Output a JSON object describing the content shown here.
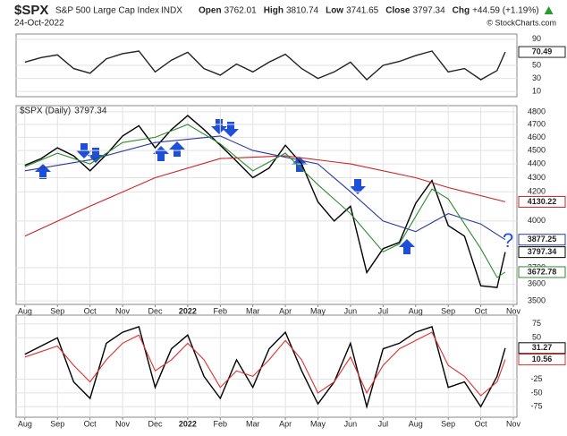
{
  "header": {
    "symbol": "$SPX",
    "name": "S&P 500 Large Cap Index",
    "exchange": "INDX",
    "date": "24-Oct-2022",
    "ohlc": [
      {
        "label": "Open",
        "value": "3762.01"
      },
      {
        "label": "High",
        "value": "3810.74"
      },
      {
        "label": "Low",
        "value": "3741.65"
      },
      {
        "label": "Close",
        "value": "3797.34"
      },
      {
        "label": "Chg",
        "value": "+44.59 (+1.19%)"
      }
    ],
    "credit": "© StockCharts.com",
    "annotation": "?"
  },
  "chart_data": [
    {
      "type": "line",
      "xlim": [
        -0.27,
        15.11
      ],
      "ylim": [
        2,
        98
      ],
      "yticks": [
        90,
        50,
        30,
        10
      ],
      "grid": true,
      "series": [
        {
          "color": "#222222",
          "x": [
            0,
            0.5,
            1,
            1.5,
            2,
            2.5,
            3,
            3.5,
            4,
            4.5,
            5,
            5.5,
            6,
            6.5,
            7,
            7.5,
            8,
            8.5,
            9,
            9.5,
            10,
            10.5,
            11,
            11.5,
            12,
            12.5,
            13,
            13.5,
            14,
            14.5,
            14.75
          ],
          "values": [
            55,
            62,
            66,
            45,
            38,
            60,
            68,
            72,
            40,
            58,
            70,
            45,
            35,
            52,
            40,
            55,
            67,
            45,
            30,
            40,
            55,
            28,
            50,
            56,
            65,
            72,
            40,
            45,
            28,
            42,
            70.49
          ]
        }
      ]
    },
    {
      "type": "line",
      "legend": "$SPX (Daily)",
      "log_y": true,
      "xlim": [
        -0.27,
        15.11
      ],
      "ylim": [
        3480,
        4850
      ],
      "yticks": [
        3500,
        3600,
        3700,
        4000,
        4200,
        4300,
        4400,
        4500,
        4600,
        4700,
        4800
      ],
      "grid": true,
      "xticks": [
        {
          "value": 0,
          "label": "Aug"
        },
        {
          "value": 1,
          "label": "Sep"
        },
        {
          "value": 2,
          "label": "Oct"
        },
        {
          "value": 3,
          "label": "Nov"
        },
        {
          "value": 4,
          "label": "Dec"
        },
        {
          "value": 5,
          "label": "2022"
        },
        {
          "value": 6,
          "label": "Feb"
        },
        {
          "value": 7,
          "label": "Mar"
        },
        {
          "value": 8,
          "label": "Apr"
        },
        {
          "value": 9,
          "label": "May"
        },
        {
          "value": 10,
          "label": "Jun"
        },
        {
          "value": 11,
          "label": "Jul"
        },
        {
          "value": 12,
          "label": "Aug"
        },
        {
          "value": 13,
          "label": "Sep"
        },
        {
          "value": 14,
          "label": "Oct"
        },
        {
          "value": 15,
          "label": "Nov"
        }
      ],
      "series": [
        {
          "color": "#000000",
          "x": [
            0,
            0.5,
            1,
            1.5,
            2,
            2.5,
            3,
            3.5,
            4,
            4.5,
            5,
            5.5,
            6,
            6.5,
            7,
            7.5,
            8,
            8.5,
            9,
            9.5,
            10,
            10.5,
            11,
            11.5,
            12,
            12.5,
            13,
            13.5,
            14,
            14.5,
            14.75
          ],
          "values": [
            4390,
            4440,
            4520,
            4460,
            4350,
            4470,
            4610,
            4690,
            4520,
            4660,
            4770,
            4660,
            4540,
            4420,
            4300,
            4370,
            4540,
            4400,
            4130,
            4000,
            4100,
            3670,
            3820,
            3860,
            4120,
            4280,
            3970,
            3900,
            3590,
            3580,
            3797.34
          ]
        },
        {
          "color": "#cc2222",
          "x": [
            0,
            2,
            4,
            6,
            8,
            10,
            12,
            13,
            14.75
          ],
          "values": [
            3900,
            4100,
            4300,
            4440,
            4460,
            4400,
            4300,
            4230,
            4130.22
          ]
        },
        {
          "color": "#2a3aa0",
          "x": [
            0,
            2,
            4,
            6,
            7,
            8,
            9,
            10,
            11,
            12,
            13,
            14,
            14.75
          ],
          "values": [
            4350,
            4430,
            4560,
            4610,
            4500,
            4450,
            4400,
            4200,
            4000,
            3930,
            4050,
            3980,
            3877.25
          ]
        },
        {
          "color": "#2f8a2f",
          "x": [
            0,
            1,
            2,
            3,
            4,
            5,
            6,
            7,
            8,
            9,
            10,
            11,
            11.5,
            12.5,
            13,
            13.5,
            14,
            14.5,
            14.75
          ],
          "values": [
            4380,
            4480,
            4400,
            4560,
            4600,
            4700,
            4550,
            4350,
            4480,
            4250,
            4050,
            3800,
            3850,
            4220,
            4150,
            3980,
            3820,
            3640,
            3672.78
          ]
        }
      ]
    },
    {
      "type": "line",
      "xlim": [
        -0.27,
        15.11
      ],
      "ylim": [
        -94,
        91
      ],
      "yticks": [
        75,
        50,
        -25,
        -50,
        -75
      ],
      "grid": true,
      "xticks": [
        {
          "value": 0,
          "label": "Aug"
        },
        {
          "value": 1,
          "label": "Sep"
        },
        {
          "value": 2,
          "label": "Oct"
        },
        {
          "value": 3,
          "label": "Nov"
        },
        {
          "value": 4,
          "label": "Dec"
        },
        {
          "value": 5,
          "label": "2022"
        },
        {
          "value": 6,
          "label": "Feb"
        },
        {
          "value": 7,
          "label": "Mar"
        },
        {
          "value": 8,
          "label": "Apr"
        },
        {
          "value": 9,
          "label": "May"
        },
        {
          "value": 10,
          "label": "Jun"
        },
        {
          "value": 11,
          "label": "Jul"
        },
        {
          "value": 12,
          "label": "Aug"
        },
        {
          "value": 13,
          "label": "Sep"
        },
        {
          "value": 14,
          "label": "Oct"
        },
        {
          "value": 15,
          "label": "Nov"
        }
      ],
      "series": [
        {
          "color": "#000000",
          "x": [
            0,
            0.5,
            1,
            1.5,
            2,
            2.5,
            3,
            3.5,
            4,
            4.5,
            5,
            5.5,
            6,
            6.5,
            7,
            7.5,
            8,
            8.5,
            9,
            9.5,
            10,
            10.5,
            11,
            11.5,
            12,
            12.5,
            13,
            13.5,
            14,
            14.5,
            14.75
          ],
          "values": [
            20,
            35,
            50,
            -30,
            -60,
            40,
            60,
            70,
            -40,
            30,
            55,
            -20,
            -60,
            10,
            -40,
            30,
            60,
            -10,
            -70,
            -30,
            40,
            -75,
            30,
            40,
            60,
            70,
            -40,
            -30,
            -75,
            -20,
            31.27
          ]
        },
        {
          "color": "#e03030",
          "x": [
            0,
            0.5,
            1,
            1.5,
            2,
            2.5,
            3,
            3.5,
            4,
            4.5,
            5,
            5.5,
            6,
            6.5,
            7,
            7.5,
            8,
            8.5,
            9,
            9.5,
            10,
            10.5,
            11,
            11.5,
            12,
            12.5,
            13,
            13.5,
            14,
            14.5,
            14.75
          ],
          "values": [
            15,
            25,
            35,
            0,
            -30,
            10,
            40,
            55,
            -10,
            10,
            40,
            10,
            -40,
            -10,
            -20,
            10,
            45,
            10,
            -50,
            -30,
            15,
            -50,
            0,
            30,
            45,
            60,
            0,
            -20,
            -55,
            -30,
            10.56
          ]
        }
      ]
    }
  ]
}
